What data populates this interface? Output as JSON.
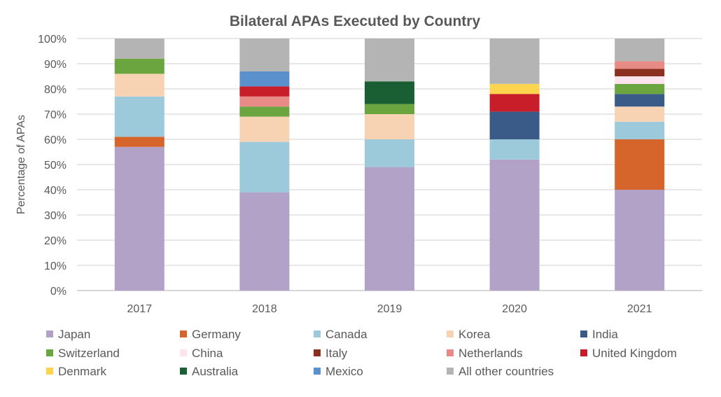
{
  "chart_data": {
    "type": "bar",
    "stacked": true,
    "title": "Bilateral APAs Executed by Country",
    "xlabel": "",
    "ylabel": "Percentage of APAs",
    "ylim": [
      0,
      100
    ],
    "yticks": [
      "0%",
      "10%",
      "20%",
      "30%",
      "40%",
      "50%",
      "60%",
      "70%",
      "80%",
      "90%",
      "100%"
    ],
    "grid": true,
    "legend_position": "bottom",
    "categories": [
      "2017",
      "2018",
      "2019",
      "2020",
      "2021"
    ],
    "series": [
      {
        "name": "Japan",
        "color": "#B3A2C7",
        "values": [
          57,
          39,
          49,
          52,
          40
        ]
      },
      {
        "name": "Germany",
        "color": "#D5652A",
        "values": [
          4,
          0,
          0,
          0,
          20
        ]
      },
      {
        "name": "Canada",
        "color": "#9DCADB",
        "values": [
          16,
          20,
          11,
          8,
          7
        ]
      },
      {
        "name": "Korea",
        "color": "#F8D3B3",
        "values": [
          9,
          10,
          10,
          0,
          6
        ]
      },
      {
        "name": "India",
        "color": "#3A5A87",
        "values": [
          0,
          0,
          0,
          11,
          5
        ]
      },
      {
        "name": "Switzerland",
        "color": "#6BA540",
        "values": [
          6,
          4,
          4,
          0,
          4
        ]
      },
      {
        "name": "China",
        "color": "#FBE4EE",
        "values": [
          0,
          0,
          0,
          0,
          3
        ]
      },
      {
        "name": "Italy",
        "color": "#8B3020",
        "values": [
          0,
          0,
          0,
          0,
          3
        ]
      },
      {
        "name": "Netherlands",
        "color": "#E88A85",
        "values": [
          0,
          4,
          0,
          0,
          3
        ]
      },
      {
        "name": "United Kingdom",
        "color": "#C81E2A",
        "values": [
          0,
          4,
          0,
          7,
          0
        ]
      },
      {
        "name": "Denmark",
        "color": "#FCD44E",
        "values": [
          0,
          0,
          0,
          4,
          0
        ]
      },
      {
        "name": "Australia",
        "color": "#1A5E33",
        "values": [
          0,
          0,
          9,
          0,
          0
        ]
      },
      {
        "name": "Mexico",
        "color": "#5A91CC",
        "values": [
          0,
          6,
          0,
          0,
          0
        ]
      },
      {
        "name": "All other countries",
        "color": "#B4B4B4",
        "values": [
          8,
          13,
          17,
          18,
          9
        ]
      }
    ]
  }
}
